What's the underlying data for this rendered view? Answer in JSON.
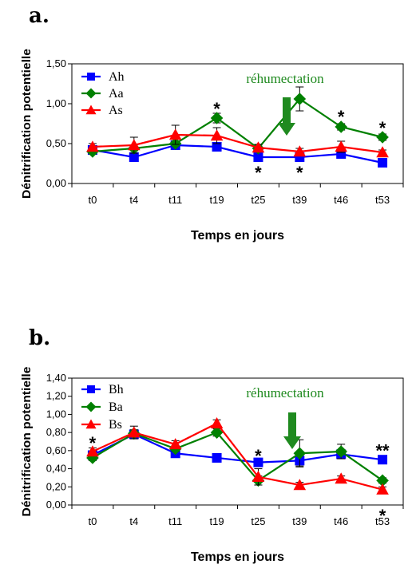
{
  "chart_data": [
    {
      "type": "line",
      "panel": "a.",
      "title": "",
      "xlabel": "Temps en jours",
      "ylabel": "Dénitrification potentielle",
      "ylim": [
        0,
        1.5
      ],
      "yticks": [
        "0,00",
        "0,50",
        "1,00",
        "1,50"
      ],
      "categories": [
        "t0",
        "t4",
        "t11",
        "t19",
        "t25",
        "t39",
        "t46",
        "t53"
      ],
      "series": [
        {
          "name": "Ah",
          "color": "#0000ff",
          "marker": "square",
          "values": [
            0.42,
            0.33,
            0.48,
            0.46,
            0.33,
            0.33,
            0.37,
            0.26
          ],
          "err": [
            0.03,
            0.03,
            0.03,
            0.03,
            0.03,
            0.03,
            0.03,
            0.03
          ]
        },
        {
          "name": "Aa",
          "color": "#008000",
          "marker": "diamond",
          "values": [
            0.4,
            0.44,
            0.5,
            0.82,
            0.44,
            1.06,
            0.71,
            0.58
          ],
          "err": [
            0.03,
            0.03,
            0.03,
            0.06,
            0.04,
            0.15,
            0.04,
            0.04
          ]
        },
        {
          "name": "As",
          "color": "#ff0000",
          "marker": "triangle",
          "values": [
            0.46,
            0.48,
            0.61,
            0.6,
            0.45,
            0.4,
            0.46,
            0.39
          ],
          "err": [
            0.04,
            0.1,
            0.12,
            0.1,
            0.04,
            0.04,
            0.07,
            0.03
          ]
        }
      ],
      "annotations": [
        {
          "text": "réhumectation",
          "kind": "label"
        },
        {
          "kind": "arrow",
          "between": [
            "t25",
            "t39"
          ]
        },
        {
          "text": "*",
          "category": "t19",
          "y": 0.98
        },
        {
          "text": "*",
          "category": "t25",
          "y": 0.18
        },
        {
          "text": "*",
          "category": "t39",
          "y": 0.18
        },
        {
          "text": "*",
          "category": "t46",
          "y": 0.88
        },
        {
          "text": "*",
          "category": "t53",
          "y": 0.74
        }
      ],
      "legend": "top-left",
      "grid": false
    },
    {
      "type": "line",
      "panel": "b.",
      "title": "",
      "xlabel": "Temps en jours",
      "ylabel": "Dénitrification potentielle",
      "ylim": [
        0,
        1.4
      ],
      "yticks": [
        "0,00",
        "0,20",
        "0,40",
        "0,60",
        "0,80",
        "1,00",
        "1,20",
        "1,40"
      ],
      "categories": [
        "t0",
        "t4",
        "t11",
        "t19",
        "t25",
        "t39",
        "t46",
        "t53"
      ],
      "series": [
        {
          "name": "Bh",
          "color": "#0000ff",
          "marker": "square",
          "values": [
            0.55,
            0.78,
            0.57,
            0.52,
            0.47,
            0.49,
            0.56,
            0.5
          ],
          "err": [
            0.03,
            0.04,
            0.03,
            0.03,
            0.04,
            0.06,
            0.04,
            0.03
          ]
        },
        {
          "name": "Ba",
          "color": "#008000",
          "marker": "diamond",
          "values": [
            0.52,
            0.79,
            0.62,
            0.8,
            0.27,
            0.57,
            0.59,
            0.27
          ],
          "err": [
            0.03,
            0.04,
            0.03,
            0.04,
            0.05,
            0.15,
            0.08,
            0.03
          ]
        },
        {
          "name": "Bs",
          "color": "#ff0000",
          "marker": "triangle",
          "values": [
            0.59,
            0.8,
            0.67,
            0.9,
            0.31,
            0.22,
            0.29,
            0.17
          ],
          "err": [
            0.04,
            0.07,
            0.04,
            0.04,
            0.09,
            0.03,
            0.03,
            0.03
          ]
        }
      ],
      "annotations": [
        {
          "text": "réhumectation",
          "kind": "label"
        },
        {
          "kind": "arrow",
          "between": [
            "t25",
            "t39"
          ]
        },
        {
          "text": "*",
          "category": "t0",
          "y": 0.72
        },
        {
          "text": "*",
          "category": "t25",
          "y": 0.58
        },
        {
          "text": "**",
          "category": "t53",
          "y": 0.64
        },
        {
          "text": "*",
          "category": "t53",
          "y": -0.08
        }
      ],
      "legend": "top-left",
      "grid": false
    }
  ]
}
